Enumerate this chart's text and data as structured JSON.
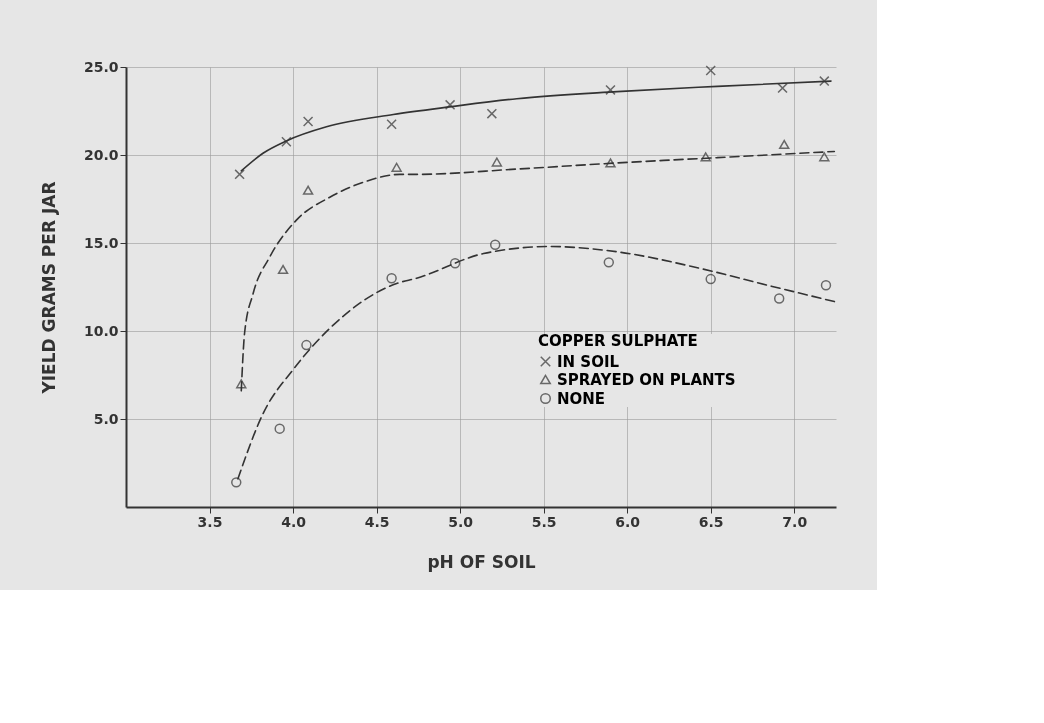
{
  "chart_data": {
    "type": "scatter",
    "xlabel": "pH OF SOIL",
    "ylabel": "YIELD   GRAMS PER JAR",
    "legend_title": "COPPER SULPHATE",
    "legend": "bottom right",
    "grid": true,
    "xlim": [
      3.0,
      7.25
    ],
    "ylim": [
      0,
      25
    ],
    "xticks": [
      {
        "value": 3.5,
        "label": "3.5"
      },
      {
        "value": 4.0,
        "label": "4.0"
      },
      {
        "value": 4.5,
        "label": "4.5"
      },
      {
        "value": 5.0,
        "label": "5.0"
      },
      {
        "value": 5.5,
        "label": "5.5"
      },
      {
        "value": 6.0,
        "label": "6.0"
      },
      {
        "value": 6.5,
        "label": "6.5"
      },
      {
        "value": 7.0,
        "label": "7.0"
      }
    ],
    "yticks": [
      {
        "value": 5,
        "label": "5.0"
      },
      {
        "value": 10,
        "label": "10.0"
      },
      {
        "value": 15,
        "label": "15.0"
      },
      {
        "value": 20,
        "label": "20.0"
      },
      {
        "value": 25,
        "label": "25.0"
      }
    ],
    "series": [
      {
        "name": "IN SOIL",
        "marker": "cross",
        "color": "#333333",
        "x": [
          3.68,
          3.96,
          4.09,
          4.59,
          4.94,
          5.19,
          5.9,
          6.5,
          6.93,
          7.18
        ],
        "values": [
          18.9,
          20.75,
          21.9,
          21.75,
          22.85,
          22.35,
          23.7,
          24.8,
          23.8,
          24.2
        ]
      },
      {
        "name": "SPRAYED ON PLANTS",
        "marker": "triangle",
        "color": "#333333",
        "x": [
          3.69,
          3.94,
          4.09,
          4.62,
          5.22,
          5.9,
          6.47,
          6.94,
          7.18
        ],
        "values": [
          7.0,
          13.5,
          18.0,
          19.3,
          19.6,
          19.55,
          19.9,
          20.6,
          19.9
        ]
      },
      {
        "name": "NONE",
        "marker": "circle",
        "color": "#333333",
        "x": [
          3.66,
          3.92,
          4.08,
          4.59,
          4.97,
          5.21,
          5.89,
          6.5,
          6.91,
          7.19
        ],
        "values": [
          1.4,
          4.45,
          9.2,
          13.0,
          13.85,
          14.9,
          13.9,
          12.95,
          11.85,
          12.6
        ]
      },
      {
        "type": "line",
        "line_style": "solid",
        "color": "#333333",
        "x": [
          3.69,
          3.82,
          3.96,
          4.2,
          4.6,
          4.95,
          5.34,
          5.94,
          6.54,
          7.22
        ],
        "values": [
          19.1,
          20.1,
          20.8,
          21.6,
          22.3,
          22.75,
          23.2,
          23.6,
          23.9,
          24.2
        ]
      },
      {
        "type": "line",
        "line_style": "dashed",
        "color": "#333333",
        "x": [
          3.69,
          3.71,
          3.76,
          3.86,
          4.02,
          4.22,
          4.42,
          4.64,
          4.74,
          5.34,
          5.94,
          6.54,
          7.24
        ],
        "values": [
          6.6,
          9.9,
          12.1,
          14.2,
          16.3,
          17.6,
          18.45,
          18.9,
          18.9,
          19.2,
          19.55,
          19.85,
          20.2
        ]
      },
      {
        "type": "line",
        "line_style": "dashed",
        "color": "#333333",
        "x": [
          3.67,
          3.82,
          4.0,
          4.22,
          4.62,
          4.74,
          5.14,
          5.54,
          5.94,
          6.44,
          6.84,
          7.25
        ],
        "values": [
          1.6,
          5.3,
          7.8,
          10.15,
          12.7,
          13.0,
          14.4,
          14.8,
          14.5,
          13.55,
          12.6,
          11.65
        ]
      }
    ]
  }
}
